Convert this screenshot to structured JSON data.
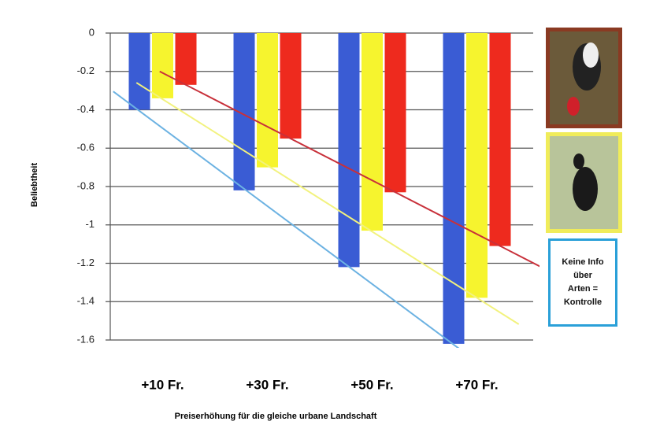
{
  "chart_data": {
    "type": "bar",
    "x_label": "Preiserhöhung für die gleiche urbane Landschaft",
    "y_label": "Beliebtheit",
    "categories": [
      "+10 Fr.",
      "+30 Fr.",
      "+50 Fr.",
      "+70 Fr."
    ],
    "series": [
      {
        "name": "Keine Info über Arten = Kontrolle",
        "color": "#3a5cd4",
        "trend_color": "#6cb2e2",
        "values": [
          -0.4,
          -0.82,
          -1.22,
          -1.62
        ]
      },
      {
        "color": "#f6f42e",
        "trend_color": "#f2f27e",
        "values": [
          -0.34,
          -0.7,
          -1.03,
          -1.38
        ]
      },
      {
        "color": "#ee2a1e",
        "trend_color": "#c8303a",
        "values": [
          -0.27,
          -0.55,
          -0.83,
          -1.11
        ]
      }
    ],
    "ylim": [
      -1.6,
      0
    ],
    "yticks": [
      0,
      -0.2,
      -0.4,
      -0.6,
      -0.8,
      -1,
      -1.2,
      -1.4,
      -1.6
    ],
    "grid": true,
    "trendline": true
  }
}
